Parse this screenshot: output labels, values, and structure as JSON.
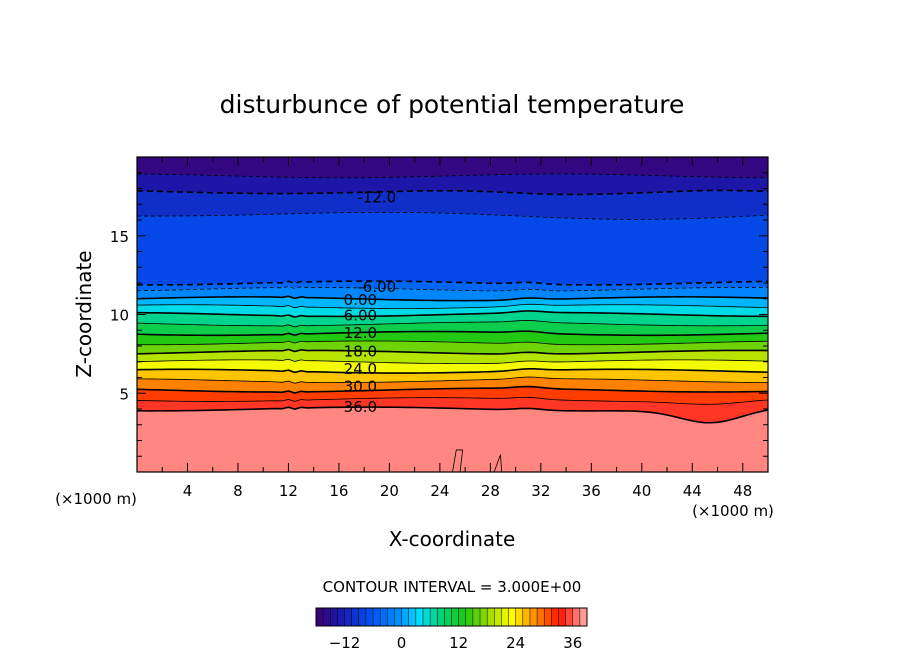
{
  "chart_data": {
    "type": "contour",
    "title": "disturbunce of potential temperature",
    "xlabel": "X-coordinate",
    "ylabel": "Z-coordinate",
    "x_unit_left": "(×1000 m)",
    "x_unit_right": "(×1000 m)",
    "xlim": [
      0,
      50
    ],
    "ylim": [
      0,
      20
    ],
    "x_ticks": [
      4,
      8,
      12,
      16,
      20,
      24,
      28,
      32,
      36,
      40,
      44,
      48
    ],
    "y_ticks": [
      5,
      10,
      15
    ],
    "y_minor_step": 1,
    "x_minor_step": 2,
    "contour_interval_text": "CONTOUR INTERVAL = 3.000E+00",
    "contour_interval": 3,
    "value_range": [
      -18,
      39
    ],
    "colorbar": {
      "min": -18,
      "max": 39,
      "ticks": [
        -12,
        0,
        12,
        24,
        36
      ],
      "tick_labels": [
        "−12",
        "0",
        "12",
        "24",
        "36"
      ]
    },
    "contour_labels": [
      {
        "text": "-12.0",
        "x": 19,
        "z": 17.5
      },
      {
        "text": "-6.00",
        "x": 19,
        "z": 11.8
      },
      {
        "text": "0.00",
        "x": 17.7,
        "z": 11.0
      },
      {
        "text": "6.00",
        "x": 17.7,
        "z": 10.0
      },
      {
        "text": "12.0",
        "x": 17.7,
        "z": 8.9
      },
      {
        "text": "18.0",
        "x": 17.7,
        "z": 7.7
      },
      {
        "text": "24.0",
        "x": 17.7,
        "z": 6.6
      },
      {
        "text": "30.0",
        "x": 17.7,
        "z": 5.5
      },
      {
        "text": "36.0",
        "x": 17.7,
        "z": 4.2
      }
    ],
    "contour_levels_z_at_x0": [
      {
        "value": -15,
        "z": 18.8
      },
      {
        "value": -12,
        "z": 17.8
      },
      {
        "value": -9,
        "z": 16.3
      },
      {
        "value": -6,
        "z": 12.0
      },
      {
        "value": -3,
        "z": 11.6
      },
      {
        "value": 0,
        "z": 11.0
      },
      {
        "value": 3,
        "z": 10.5
      },
      {
        "value": 6,
        "z": 10.0
      },
      {
        "value": 9,
        "z": 9.4
      },
      {
        "value": 12,
        "z": 8.8
      },
      {
        "value": 15,
        "z": 8.2
      },
      {
        "value": 18,
        "z": 7.6
      },
      {
        "value": 21,
        "z": 7.0
      },
      {
        "value": 24,
        "z": 6.4
      },
      {
        "value": 27,
        "z": 5.8
      },
      {
        "value": 30,
        "z": 5.2
      },
      {
        "value": 33,
        "z": 4.6
      },
      {
        "value": 36,
        "z": 4.0
      }
    ]
  }
}
